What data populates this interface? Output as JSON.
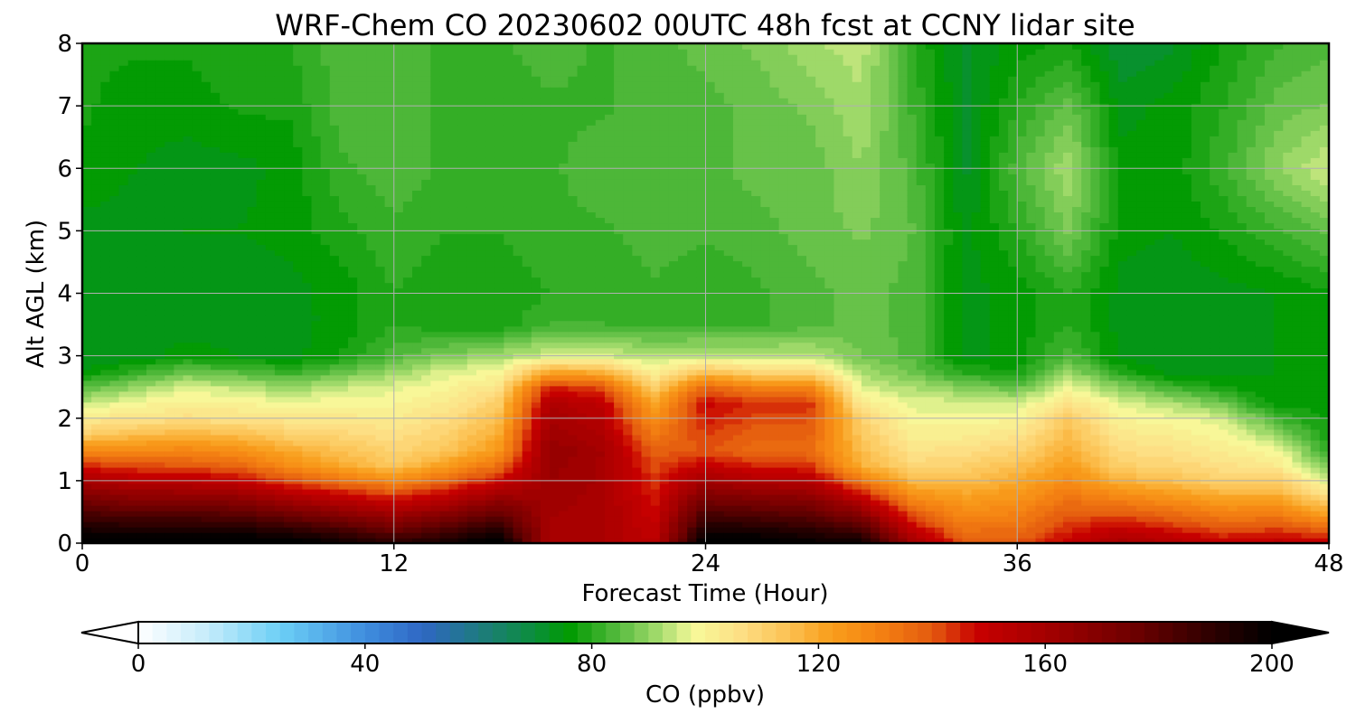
{
  "chart_data": {
    "type": "heatmap",
    "subtype": "filled-contour",
    "title": "WRF-Chem CO  20230602 00UTC 48h fcst at CCNY lidar site",
    "xlabel": "Forecast Time (Hour)",
    "ylabel": "Alt AGL (km)",
    "xlim": [
      0,
      48
    ],
    "ylim": [
      0,
      8
    ],
    "xticks": [
      0,
      12,
      24,
      36,
      48
    ],
    "yticks": [
      0,
      1,
      2,
      3,
      4,
      5,
      6,
      7,
      8
    ],
    "grid": true,
    "x_hours": [
      0,
      2,
      4,
      6,
      8,
      10,
      12,
      14,
      16,
      18,
      20,
      22,
      24,
      26,
      28,
      30,
      32,
      34,
      36,
      38,
      40,
      42,
      44,
      46,
      48
    ],
    "z_km": [
      0,
      0.25,
      0.5,
      0.75,
      1,
      1.25,
      1.5,
      1.75,
      2,
      2.25,
      2.5,
      2.75,
      3,
      3.5,
      4,
      5,
      6,
      7,
      8
    ],
    "profile_params": {
      "description": "CO (ppbv) per forecast hour: boundary-layer top height (km), near-surface, mid-PBL and lower-free-troposphere values, and free-troposphere values at 4/5/6/7/8 km",
      "pbl_top_km": [
        2.2,
        2.35,
        2.5,
        2.45,
        2.35,
        2.45,
        2.55,
        2.75,
        2.85,
        3.0,
        3.0,
        2.85,
        2.95,
        2.9,
        2.9,
        2.5,
        2.3,
        2.3,
        2.2,
        2.55,
        2.3,
        2.15,
        2.0,
        1.6,
        1.0
      ],
      "surface": [
        205,
        205,
        206,
        206,
        204,
        198,
        190,
        196,
        204,
        158,
        158,
        152,
        204,
        204,
        200,
        198,
        160,
        140,
        140,
        150,
        160,
        155,
        150,
        152,
        152
      ],
      "mid_pbl": [
        155,
        145,
        140,
        138,
        130,
        120,
        112,
        115,
        125,
        165,
        160,
        140,
        140,
        135,
        135,
        118,
        110,
        112,
        118,
        122,
        112,
        112,
        110,
        118,
        120
      ],
      "upper_pbl": [
        110,
        108,
        106,
        106,
        106,
        104,
        102,
        104,
        110,
        155,
        150,
        120,
        150,
        145,
        145,
        110,
        100,
        100,
        104,
        112,
        102,
        102,
        100,
        102,
        104
      ],
      "ft4": [
        73,
        73,
        73,
        73,
        74,
        76,
        80,
        78,
        78,
        80,
        80,
        82,
        80,
        82,
        84,
        86,
        84,
        74,
        76,
        80,
        74,
        73,
        74,
        75,
        77
      ],
      "ft5": [
        74,
        74,
        75,
        75,
        76,
        79,
        82,
        80,
        80,
        82,
        82,
        84,
        83,
        84,
        86,
        88,
        85,
        74,
        80,
        88,
        76,
        75,
        78,
        82,
        86
      ],
      "ft6": [
        77,
        75,
        74,
        74,
        76,
        82,
        84,
        82,
        80,
        82,
        84,
        84,
        84,
        86,
        86,
        90,
        84,
        72,
        84,
        92,
        76,
        76,
        82,
        90,
        95
      ],
      "ft7": [
        78,
        76,
        76,
        78,
        78,
        84,
        84,
        82,
        80,
        82,
        82,
        84,
        84,
        86,
        88,
        92,
        82,
        72,
        80,
        86,
        74,
        76,
        80,
        86,
        88
      ],
      "ft8": [
        78,
        78,
        78,
        80,
        80,
        84,
        84,
        82,
        82,
        84,
        82,
        84,
        86,
        88,
        92,
        94,
        80,
        72,
        76,
        78,
        70,
        72,
        78,
        82,
        84
      ]
    },
    "colorbar": {
      "label": "CO  (ppbv)",
      "vmin": 0,
      "vmax": 200,
      "levels_step": 2.5,
      "ticks": [
        0,
        40,
        80,
        120,
        160,
        200
      ],
      "extend": "both",
      "orientation": "horizontal",
      "colormap_stops": [
        [
          0,
          "#ffffff"
        ],
        [
          12,
          "#c6ecfb"
        ],
        [
          25,
          "#6ccff6"
        ],
        [
          40,
          "#3f8ede"
        ],
        [
          50,
          "#2f67c4"
        ],
        [
          60,
          "#1e7a80"
        ],
        [
          70,
          "#0a8f3a"
        ],
        [
          76,
          "#019a01"
        ],
        [
          84,
          "#4fb83a"
        ],
        [
          92,
          "#a6dc6e"
        ],
        [
          98,
          "#f7f99a"
        ],
        [
          106,
          "#fde085"
        ],
        [
          114,
          "#fcc458"
        ],
        [
          122,
          "#f99f1c"
        ],
        [
          130,
          "#f58412"
        ],
        [
          140,
          "#e45b0f"
        ],
        [
          148,
          "#c80000"
        ],
        [
          160,
          "#a40000"
        ],
        [
          176,
          "#6c0000"
        ],
        [
          190,
          "#2a0000"
        ],
        [
          200,
          "#000000"
        ]
      ]
    }
  }
}
